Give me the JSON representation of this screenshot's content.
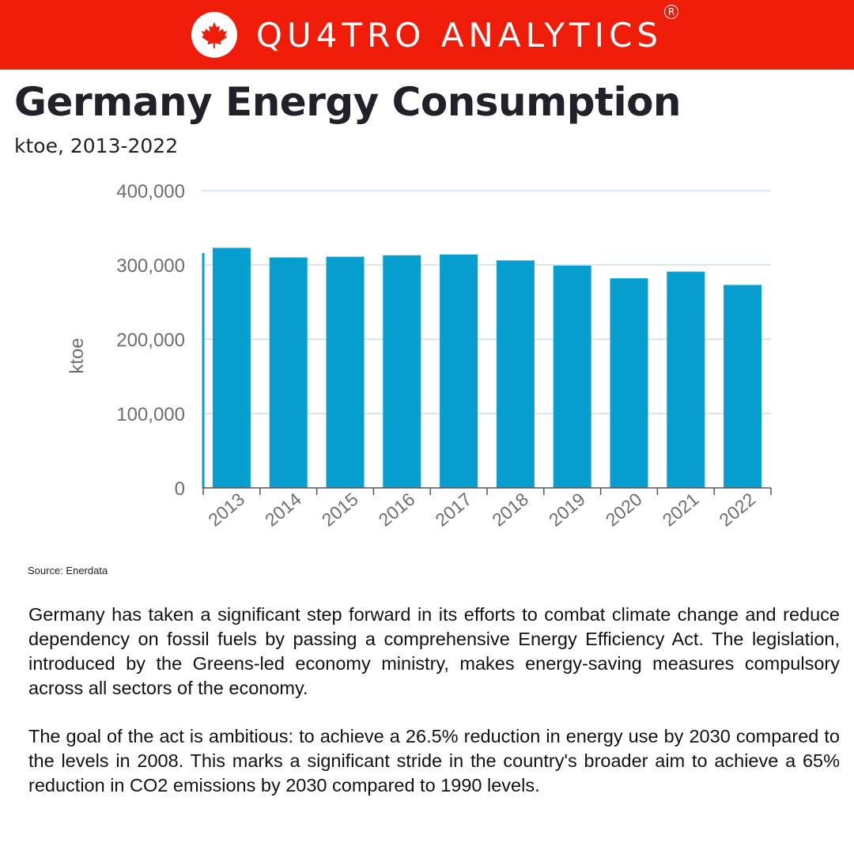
{
  "header": {
    "brand": "QU4TRO ANALYTICS",
    "registered_mark": "R",
    "logo_icon": "maple-leaf-icon",
    "background_color": "#ee1c09"
  },
  "chart_data": {
    "type": "bar",
    "title": "Germany Energy Consumption",
    "subtitle": "ktoe, 2013-2022",
    "xlabel": "",
    "ylabel": "ktoe",
    "categories": [
      "2013",
      "2014",
      "2015",
      "2016",
      "2017",
      "2018",
      "2019",
      "2020",
      "2021",
      "2022"
    ],
    "values": [
      323000,
      310000,
      311000,
      313000,
      314000,
      306000,
      299000,
      282000,
      291000,
      273000
    ],
    "ylim": [
      0,
      400000
    ],
    "yticks": [
      0,
      100000,
      200000,
      300000,
      400000
    ],
    "ytick_labels": [
      "0",
      "100,000",
      "200,000",
      "300,000",
      "400,000"
    ],
    "bar_color": "#069fd0",
    "grid": true,
    "legend": "none"
  },
  "source": "Source: Enerdata",
  "body": {
    "paragraph1": "Germany has taken a significant step forward in its efforts to combat climate change and reduce dependency on fossil fuels by passing a comprehensive Energy Efficiency Act. The legislation, introduced by the Greens-led economy ministry, makes energy-saving measures compulsory across all sectors of the economy.",
    "paragraph2": "The goal of the act is ambitious: to achieve a 26.5% reduction in energy use by 2030 compared to the levels in 2008. This marks a significant stride in the country's broader aim to achieve a 65% reduction in CO2 emissions by 2030 compared to 1990 levels."
  }
}
